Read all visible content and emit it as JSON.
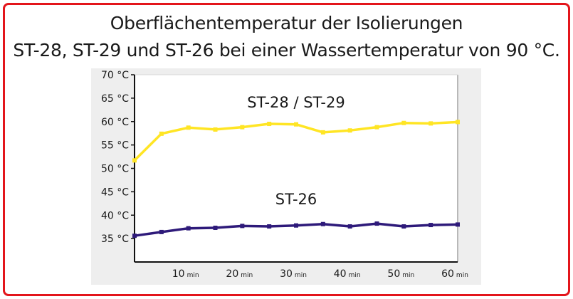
{
  "title_line1": "Oberflächentemperatur der Isolierungen",
  "title_line2": "ST-28, ST-29 und ST-26 bei einer Wassertemperatur von 90 °C.",
  "colors": {
    "frame": "#e3151b",
    "panel": "#eeeeee",
    "series1": "#ffe524",
    "series2": "#2e1a7a",
    "axis": "#111111"
  },
  "chart_data": {
    "type": "line",
    "y_unit": "°C",
    "x_unit": "min",
    "xlim": [
      0,
      60
    ],
    "ylim": [
      30,
      70
    ],
    "y_ticks": [
      {
        "value": 70,
        "label": "70 °C"
      },
      {
        "value": 65,
        "label": "65 °C"
      },
      {
        "value": 60,
        "label": "60 °C"
      },
      {
        "value": 55,
        "label": "55 °C"
      },
      {
        "value": 50,
        "label": "50 °C"
      },
      {
        "value": 45,
        "label": "45 °C"
      },
      {
        "value": 40,
        "label": "40 °C"
      },
      {
        "value": 35,
        "label": "35 °C"
      }
    ],
    "x_ticks": [
      {
        "value": 10,
        "label": "10",
        "unit": "min"
      },
      {
        "value": 20,
        "label": "20",
        "unit": "min"
      },
      {
        "value": 30,
        "label": "30",
        "unit": "min"
      },
      {
        "value": 40,
        "label": "40",
        "unit": "min"
      },
      {
        "value": 50,
        "label": "50",
        "unit": "min"
      },
      {
        "value": 60,
        "label": "60",
        "unit": "min"
      }
    ],
    "series": [
      {
        "name": "ST-28 / ST-29",
        "color": "#ffe524",
        "x": [
          0,
          5,
          10,
          15,
          20,
          25,
          30,
          35,
          40,
          45,
          50,
          55,
          60
        ],
        "y": [
          51.7,
          57.4,
          58.7,
          58.3,
          58.8,
          59.5,
          59.4,
          57.7,
          58.1,
          58.8,
          59.7,
          59.6,
          59.9
        ],
        "label_position": {
          "x": 30,
          "y": 63
        }
      },
      {
        "name": "ST-26",
        "color": "#2e1a7a",
        "x": [
          0,
          5,
          10,
          15,
          20,
          25,
          30,
          35,
          40,
          45,
          50,
          55,
          60
        ],
        "y": [
          35.6,
          36.4,
          37.2,
          37.3,
          37.7,
          37.6,
          37.8,
          38.1,
          37.6,
          38.2,
          37.6,
          37.9,
          38.0
        ],
        "label_position": {
          "x": 30,
          "y": 42.3
        }
      }
    ]
  }
}
